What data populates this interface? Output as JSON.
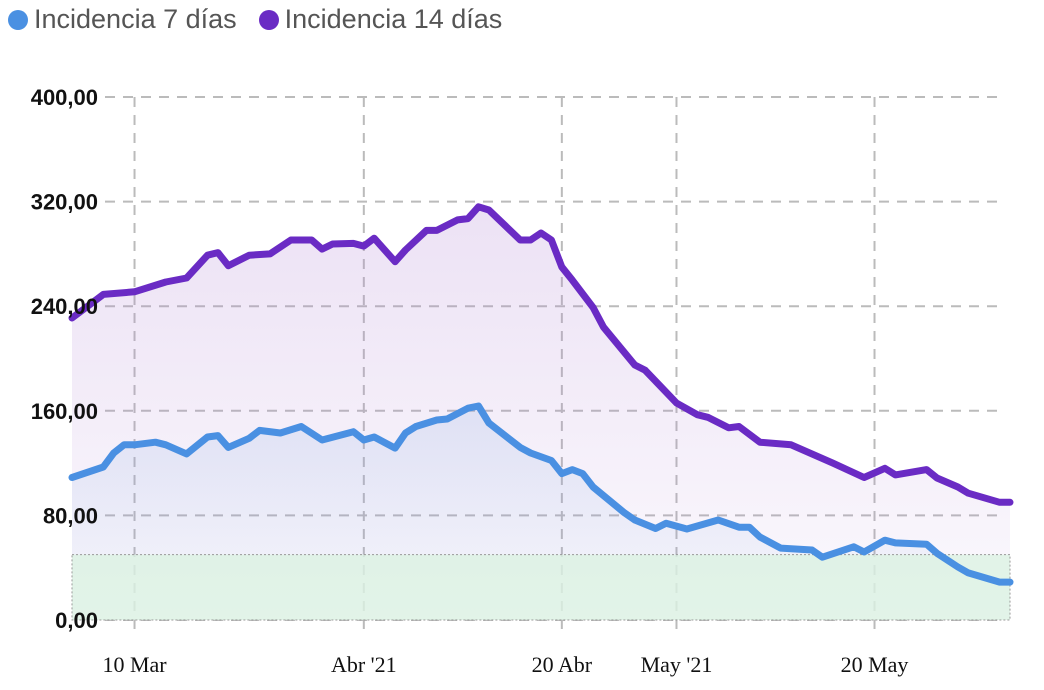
{
  "chart_data": {
    "type": "line",
    "title": "",
    "xlabel": "",
    "ylabel": "",
    "xlim": [
      "2021-03-04",
      "2021-06-02"
    ],
    "ylim": [
      0,
      400
    ],
    "grid": true,
    "legend_placement": "top-left",
    "y_ticks": [
      0,
      80,
      160,
      240,
      320,
      400
    ],
    "y_tick_labels": [
      "0,00",
      "80,00",
      "160,00",
      "240,00",
      "320,00",
      "400,00"
    ],
    "x_ticks": [
      {
        "date": "2021-03-10",
        "label": "10 Mar"
      },
      {
        "date": "2021-04-01",
        "label": "Abr '21"
      },
      {
        "date": "2021-04-20",
        "label": "20 Abr"
      },
      {
        "date": "2021-05-01",
        "label": "May '21"
      },
      {
        "date": "2021-05-20",
        "label": "20 May"
      }
    ],
    "threshold_band": {
      "from": 0,
      "to": 50,
      "color": "#dcf2e2"
    },
    "series": [
      {
        "name": "Incidencia 7 días",
        "color": "#4a90e2",
        "points": [
          [
            "2021-03-04",
            109
          ],
          [
            "2021-03-07",
            117
          ],
          [
            "2021-03-08",
            127.7
          ],
          [
            "2021-03-09",
            134
          ],
          [
            "2021-03-10",
            134
          ],
          [
            "2021-03-12",
            136
          ],
          [
            "2021-03-13",
            134
          ],
          [
            "2021-03-15",
            127
          ],
          [
            "2021-03-17",
            140
          ],
          [
            "2021-03-18",
            141
          ],
          [
            "2021-03-19",
            132
          ],
          [
            "2021-03-21",
            139
          ],
          [
            "2021-03-22",
            145
          ],
          [
            "2021-03-24",
            143
          ],
          [
            "2021-03-26",
            148
          ],
          [
            "2021-03-28",
            137.7
          ],
          [
            "2021-03-31",
            144
          ],
          [
            "2021-04-01",
            137.7
          ],
          [
            "2021-04-02",
            140
          ],
          [
            "2021-04-04",
            131.5
          ],
          [
            "2021-04-05",
            143
          ],
          [
            "2021-04-06",
            148
          ],
          [
            "2021-04-08",
            153
          ],
          [
            "2021-04-09",
            153.7
          ],
          [
            "2021-04-11",
            162
          ],
          [
            "2021-04-12",
            163.7
          ],
          [
            "2021-04-13",
            150.7
          ],
          [
            "2021-04-16",
            132
          ],
          [
            "2021-04-17",
            127.7
          ],
          [
            "2021-04-19",
            122
          ],
          [
            "2021-04-20",
            112
          ],
          [
            "2021-04-21",
            115
          ],
          [
            "2021-04-22",
            112
          ],
          [
            "2021-04-23",
            101.7
          ],
          [
            "2021-04-26",
            82
          ],
          [
            "2021-04-27",
            76.5
          ],
          [
            "2021-04-29",
            70
          ],
          [
            "2021-04-30",
            74
          ],
          [
            "2021-05-02",
            69.6
          ],
          [
            "2021-05-05",
            76.5
          ],
          [
            "2021-05-07",
            71
          ],
          [
            "2021-05-08",
            71
          ],
          [
            "2021-05-09",
            63.5
          ],
          [
            "2021-05-11",
            55
          ],
          [
            "2021-05-14",
            53.5
          ],
          [
            "2021-05-15",
            48
          ],
          [
            "2021-05-18",
            56
          ],
          [
            "2021-05-19",
            52
          ],
          [
            "2021-05-21",
            61
          ],
          [
            "2021-05-22",
            59
          ],
          [
            "2021-05-25",
            58
          ],
          [
            "2021-05-26",
            51
          ],
          [
            "2021-05-28",
            40.5
          ],
          [
            "2021-05-29",
            36
          ],
          [
            "2021-06-01",
            29
          ],
          [
            "2021-06-02",
            29
          ]
        ]
      },
      {
        "name": "Incidencia 14 días",
        "color": "#6a2bc4",
        "points": [
          [
            "2021-03-04",
            231
          ],
          [
            "2021-03-07",
            249
          ],
          [
            "2021-03-10",
            251
          ],
          [
            "2021-03-13",
            258.5
          ],
          [
            "2021-03-15",
            261.6
          ],
          [
            "2021-03-17",
            279
          ],
          [
            "2021-03-18",
            281
          ],
          [
            "2021-03-19",
            271
          ],
          [
            "2021-03-21",
            279
          ],
          [
            "2021-03-23",
            280
          ],
          [
            "2021-03-25",
            290.6
          ],
          [
            "2021-03-27",
            290.6
          ],
          [
            "2021-03-28",
            283.7
          ],
          [
            "2021-03-29",
            287.6
          ],
          [
            "2021-03-31",
            288
          ],
          [
            "2021-04-01",
            286
          ],
          [
            "2021-04-02",
            292
          ],
          [
            "2021-04-04",
            274
          ],
          [
            "2021-04-05",
            283
          ],
          [
            "2021-04-07",
            298
          ],
          [
            "2021-04-08",
            298
          ],
          [
            "2021-04-10",
            306
          ],
          [
            "2021-04-11",
            307
          ],
          [
            "2021-04-12",
            316
          ],
          [
            "2021-04-13",
            313.6
          ],
          [
            "2021-04-16",
            290.6
          ],
          [
            "2021-04-17",
            290.6
          ],
          [
            "2021-04-18",
            296
          ],
          [
            "2021-04-19",
            290.6
          ],
          [
            "2021-04-20",
            270
          ],
          [
            "2021-04-21",
            260
          ],
          [
            "2021-04-23",
            239
          ],
          [
            "2021-04-24",
            224
          ],
          [
            "2021-04-27",
            195
          ],
          [
            "2021-04-28",
            191
          ],
          [
            "2021-05-01",
            166
          ],
          [
            "2021-05-03",
            157
          ],
          [
            "2021-05-04",
            155
          ],
          [
            "2021-05-06",
            147
          ],
          [
            "2021-05-07",
            148
          ],
          [
            "2021-05-09",
            136
          ],
          [
            "2021-05-12",
            134
          ],
          [
            "2021-05-16",
            120
          ],
          [
            "2021-05-19",
            109
          ],
          [
            "2021-05-21",
            116
          ],
          [
            "2021-05-22",
            111
          ],
          [
            "2021-05-25",
            115
          ],
          [
            "2021-05-26",
            108.6
          ],
          [
            "2021-05-28",
            101.7
          ],
          [
            "2021-05-29",
            97
          ],
          [
            "2021-06-01",
            90
          ],
          [
            "2021-06-02",
            90
          ]
        ]
      }
    ]
  }
}
